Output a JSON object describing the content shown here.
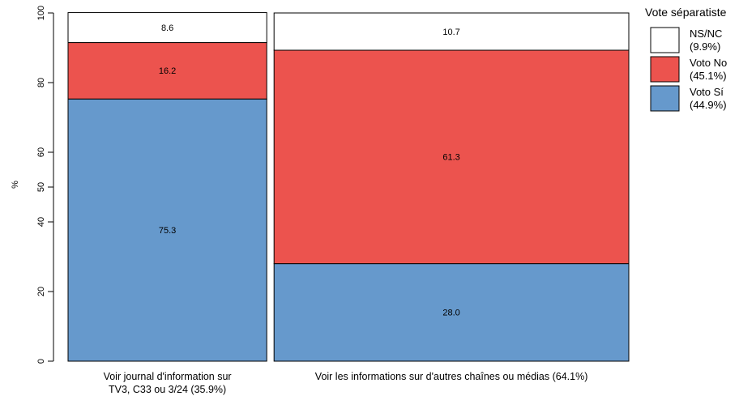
{
  "chart_data": {
    "type": "bar",
    "variant": "mosaic-stacked-100",
    "ylabel": "%",
    "ylim": [
      0,
      100
    ],
    "yticks": [
      0,
      20,
      40,
      50,
      60,
      80,
      100
    ],
    "grid": false,
    "legend_position": "top-right",
    "legend_title": "Vote séparatiste",
    "categories": [
      {
        "label_lines": [
          "Voir journal d'information sur",
          "TV3, C33 ou 3/24   (35.9%)"
        ],
        "share": 35.9
      },
      {
        "label_lines": [
          "Voir les informations sur d'autres chaînes ou médias   (64.1%)"
        ],
        "share": 64.1
      }
    ],
    "series": [
      {
        "name": "Voto Sí",
        "legend_pct": "(44.9%)",
        "color": "#6699CC",
        "values": [
          75.3,
          28.0
        ]
      },
      {
        "name": "Voto No",
        "legend_pct": "(45.1%)",
        "color": "#EC534E",
        "values": [
          16.2,
          61.3
        ]
      },
      {
        "name": "NS/NC",
        "legend_pct": "(9.9%)",
        "color": "#FFFFFF",
        "values": [
          8.6,
          10.7
        ]
      }
    ],
    "legend_order": [
      "NS/NC",
      "Voto No",
      "Voto Sí"
    ]
  }
}
